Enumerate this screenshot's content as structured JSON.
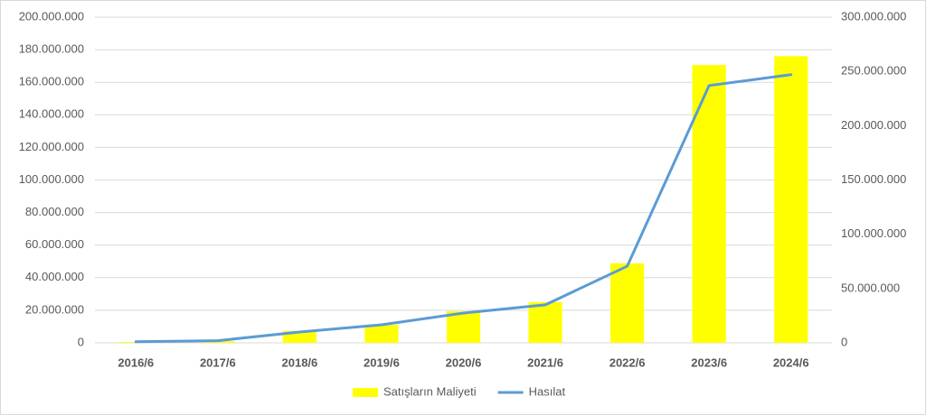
{
  "chart_data": {
    "type": "combo",
    "categories": [
      "2016/6",
      "2017/6",
      "2018/6",
      "2019/6",
      "2020/6",
      "2021/6",
      "2022/6",
      "2023/6",
      "2024/6"
    ],
    "series": [
      {
        "name": "Satışların Maliyeti",
        "type": "bar",
        "color": "#ffff00",
        "values": [
          500000,
          1000000,
          7200000,
          11000000,
          19400000,
          25000000,
          48800000,
          170600000,
          176000000
        ]
      },
      {
        "name": "Hasılat",
        "type": "line",
        "axis": "y2",
        "color": "#5b9bd5",
        "values": [
          1000000,
          2000000,
          10000000,
          16600000,
          27400000,
          35000000,
          70600000,
          237000000,
          247000000
        ]
      }
    ],
    "ylim": [
      0,
      200000000
    ],
    "yticks": [
      0,
      {
        "value": 20000000,
        "label": "20.000.000"
      },
      {
        "value": 40000000,
        "label": "40.000.000"
      },
      {
        "value": 60000000,
        "label": "60.000.000"
      },
      {
        "value": 80000000,
        "label": "80.000.000"
      },
      {
        "value": 100000000,
        "label": "100.000.000"
      },
      {
        "value": 120000000,
        "label": "120.000.000"
      },
      {
        "value": 140000000,
        "label": "140.000.000"
      },
      {
        "value": 160000000,
        "label": "160.000.000"
      },
      {
        "value": 180000000,
        "label": "180.000.000"
      },
      {
        "value": 200000000,
        "label": "200.000.000"
      }
    ],
    "y2lim": [
      0,
      300000000
    ],
    "y2ticks": [
      0,
      {
        "value": 50000000,
        "label": "50.000.000"
      },
      {
        "value": 100000000,
        "label": "100.000.000"
      },
      {
        "value": 150000000,
        "label": "150.000.000"
      },
      {
        "value": 200000000,
        "label": "200.000.000"
      },
      {
        "value": 250000000,
        "label": "250.000.000"
      },
      {
        "value": 300000000,
        "label": "300.000.000"
      }
    ],
    "grid": true,
    "legend": "bottom"
  }
}
